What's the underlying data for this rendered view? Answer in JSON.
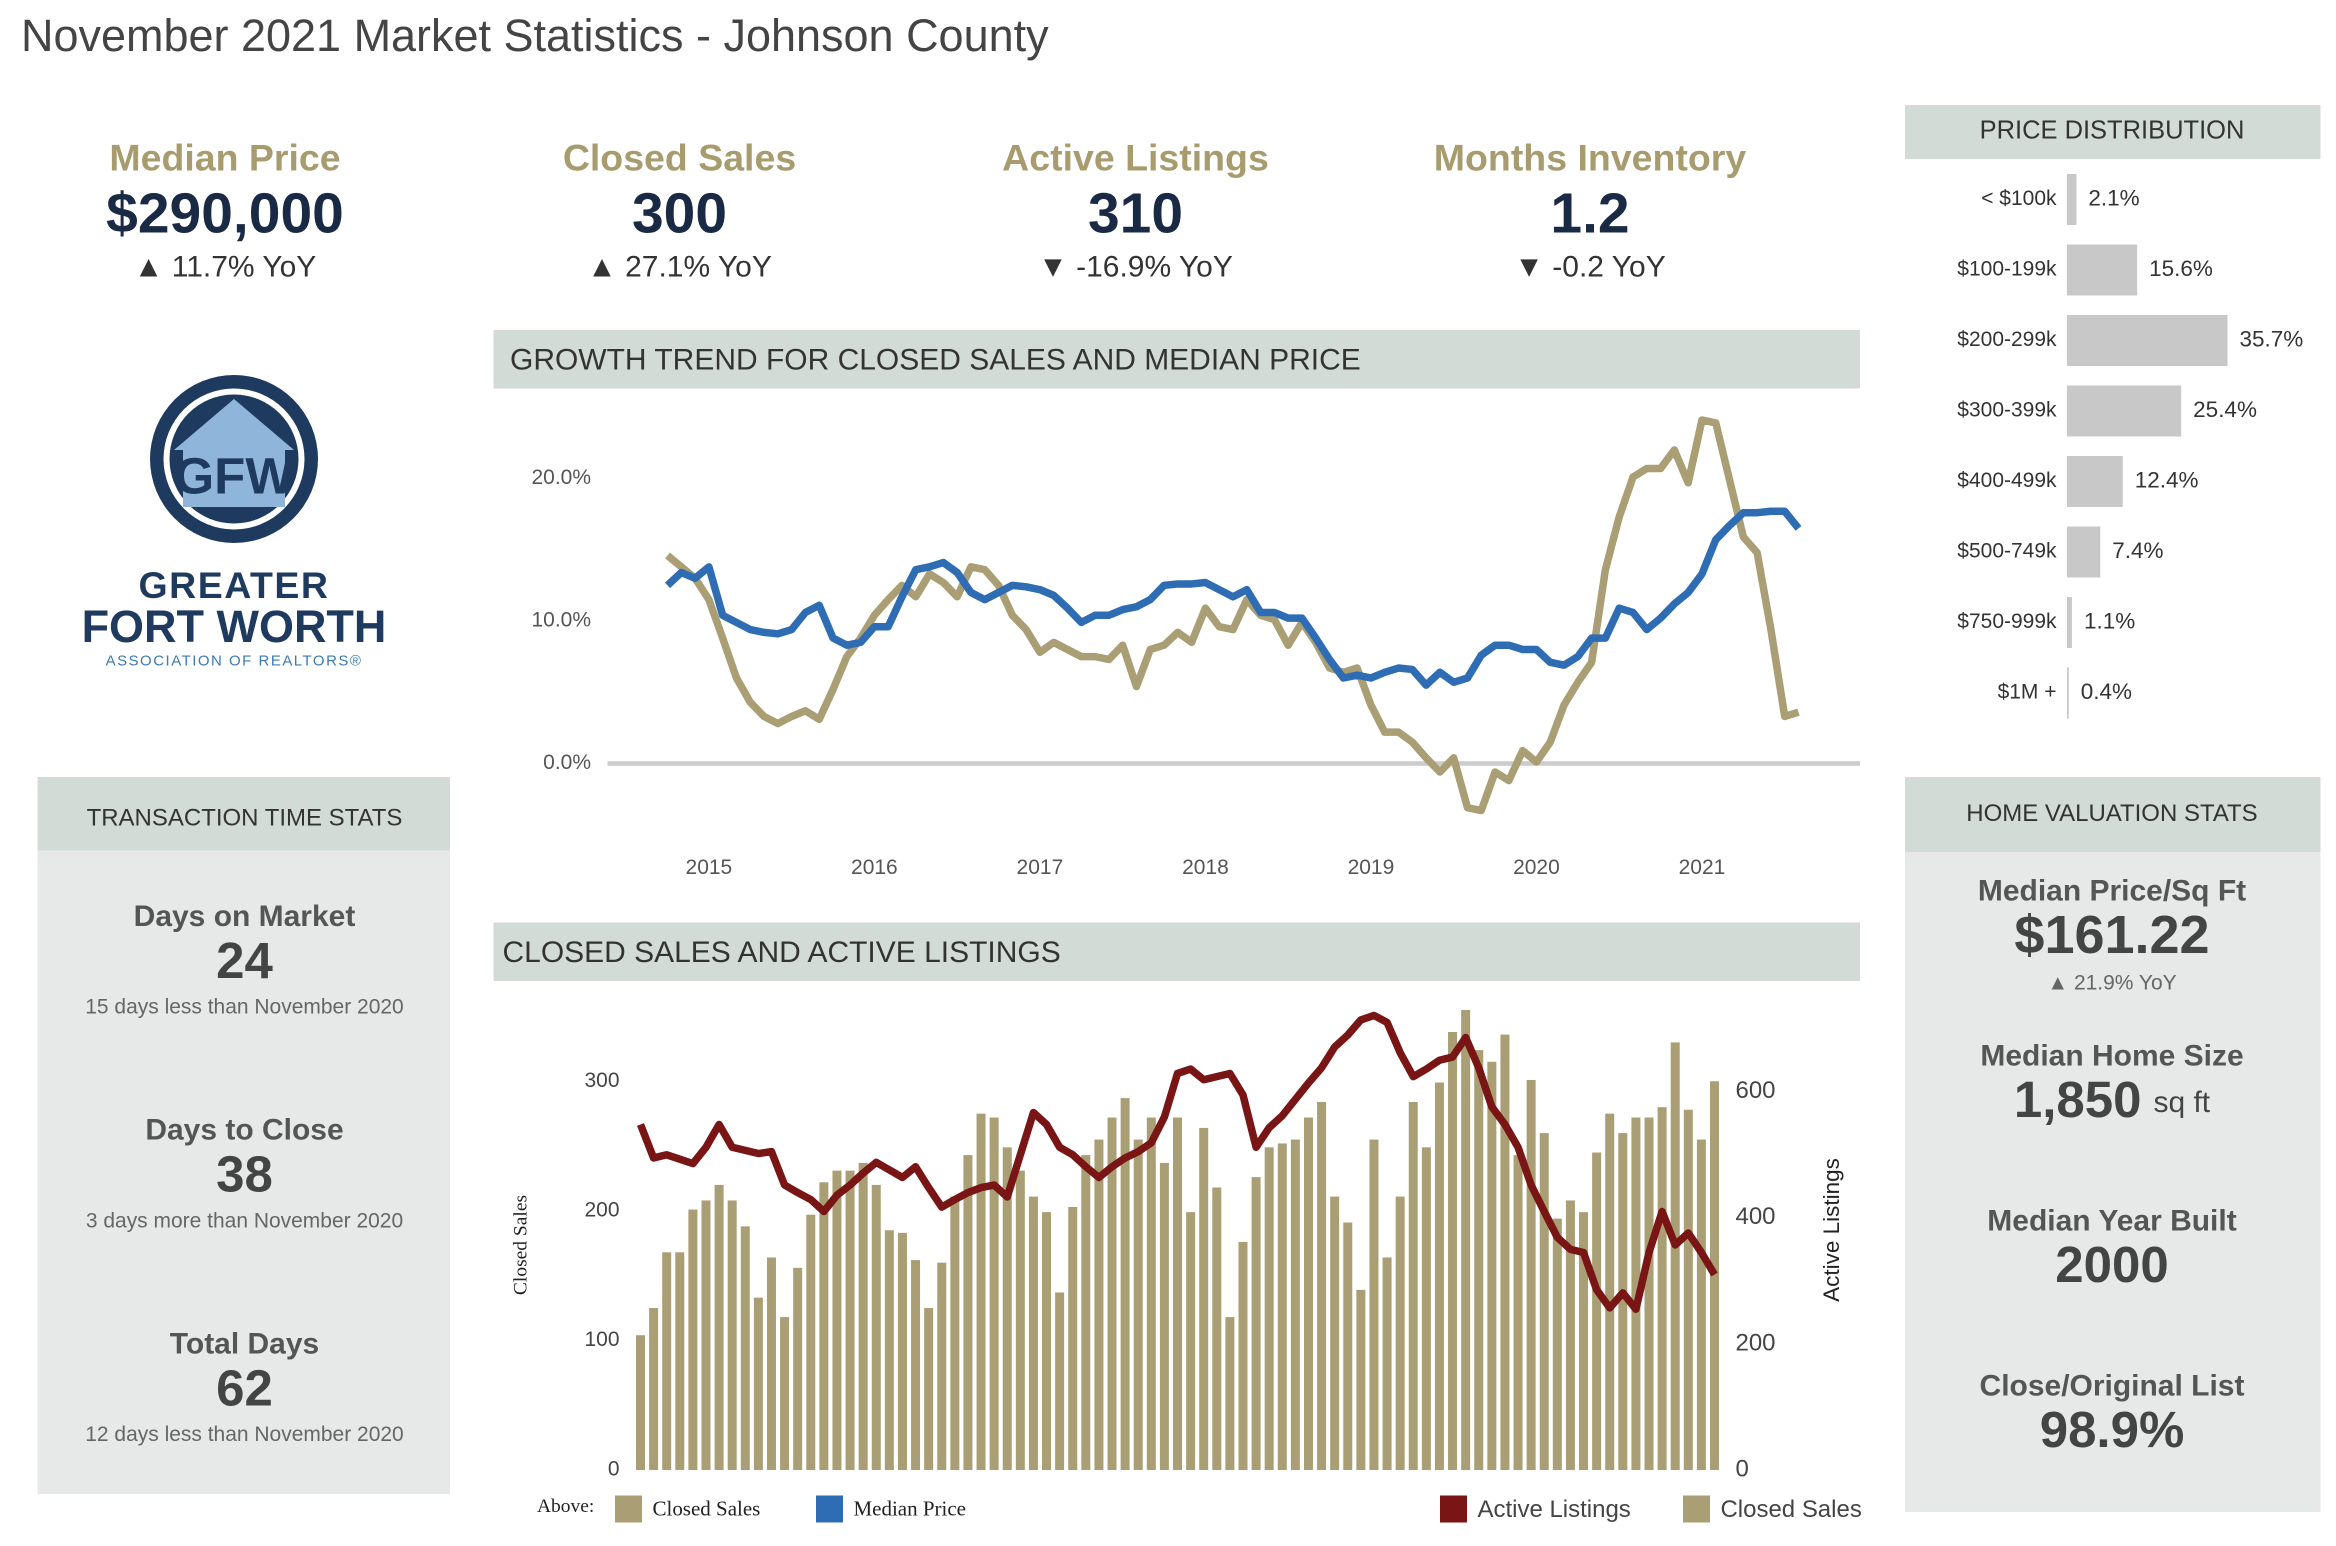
{
  "title": "November 2021 Market Statistics - Johnson County",
  "kpis": [
    {
      "label": "Median Price",
      "value": "$290,000",
      "change": "▲ 11.7% YoY"
    },
    {
      "label": "Closed Sales",
      "value": "300",
      "change": "▲ 27.1% YoY"
    },
    {
      "label": "Active Listings",
      "value": "310",
      "change": "▼ -16.9% YoY"
    },
    {
      "label": "Months Inventory",
      "value": "1.2",
      "change": "▼ -0.2 YoY"
    }
  ],
  "logo": {
    "mark": "GFW",
    "line1": "GREATER",
    "line2": "FORT WORTH",
    "line3": "ASSOCIATION OF REALTORS®"
  },
  "transaction": {
    "title": "TRANSACTION TIME STATS",
    "items": [
      {
        "label": "Days on Market",
        "value": "24",
        "note": "15 days less than November 2020"
      },
      {
        "label": "Days to Close",
        "value": "38",
        "note": "3 days more than November 2020"
      },
      {
        "label": "Total Days",
        "value": "62",
        "note": "12 days less than November 2020"
      }
    ]
  },
  "valuation": {
    "title": "HOME VALUATION STATS",
    "items": [
      {
        "label": "Median Price/Sq Ft",
        "value": "$161.22",
        "note": "▲ 21.9% YoY"
      },
      {
        "label": "Median Home Size",
        "value": "1,850",
        "unit": "sq ft"
      },
      {
        "label": "Median Year Built",
        "value": "2000"
      },
      {
        "label": "Close/Original List",
        "value": "98.9%"
      }
    ]
  },
  "chart_data": [
    {
      "type": "bar",
      "orientation": "horizontal",
      "title": "PRICE DISTRIBUTION",
      "color": "#c8c8c8",
      "categories": [
        "< $100k",
        "$100-199k",
        "$200-299k",
        "$300-399k",
        "$400-499k",
        "$500-749k",
        "$750-999k",
        "$1M +"
      ],
      "values": [
        2.1,
        15.6,
        35.7,
        25.4,
        12.4,
        7.4,
        1.1,
        0.4
      ],
      "value_labels": [
        "2.1%",
        "15.6%",
        "35.7%",
        "25.4%",
        "12.4%",
        "7.4%",
        "1.1%",
        "0.4%"
      ]
    },
    {
      "type": "line",
      "title": "GROWTH TREND FOR CLOSED SALES AND MEDIAN PRICE",
      "legend_title": "Above:",
      "grid": false,
      "categories": [
        null,
        null,
        null,
        "2015",
        null,
        null,
        null,
        null,
        null,
        null,
        null,
        null,
        null,
        null,
        null,
        "2016",
        null,
        null,
        null,
        null,
        null,
        null,
        null,
        null,
        null,
        null,
        null,
        "2017",
        null,
        null,
        null,
        null,
        null,
        null,
        null,
        null,
        null,
        null,
        null,
        "2018",
        null,
        null,
        null,
        null,
        null,
        null,
        null,
        null,
        null,
        null,
        null,
        "2019",
        null,
        null,
        null,
        null,
        null,
        null,
        null,
        null,
        null,
        null,
        null,
        "2020",
        null,
        null,
        null,
        null,
        null,
        null,
        null,
        null,
        null,
        null,
        null,
        "2021",
        null,
        null,
        null,
        null,
        null,
        null,
        null
      ],
      "ylim": [
        -4,
        25
      ],
      "yticks": [
        {
          "value": 0,
          "label": "0.0%"
        },
        {
          "value": 10,
          "label": "10.0%"
        },
        {
          "value": 20,
          "label": "20.0%"
        }
      ],
      "series": [
        {
          "name": "Closed Sales",
          "color": "#aa9e74",
          "values": [
            14.6,
            13.8,
            13.0,
            11.5,
            8.8,
            6.0,
            4.3,
            3.3,
            2.8,
            3.3,
            3.7,
            3.1,
            5.2,
            7.5,
            8.8,
            10.4,
            11.5,
            12.5,
            11.7,
            13.3,
            12.7,
            11.7,
            13.8,
            13.6,
            12.5,
            10.4,
            9.4,
            7.8,
            8.5,
            8.0,
            7.5,
            7.5,
            7.3,
            8.3,
            5.4,
            8.0,
            8.3,
            9.2,
            8.5,
            10.9,
            9.6,
            9.4,
            11.5,
            10.4,
            10.1,
            8.3,
            9.9,
            8.5,
            6.7,
            6.4,
            6.7,
            4.1,
            2.2,
            2.2,
            1.5,
            0.4,
            -0.6,
            0.4,
            -3.1,
            -3.3,
            -0.6,
            -1.2,
            0.9,
            0.1,
            1.5,
            4.1,
            5.7,
            7.1,
            13.6,
            17.3,
            20.1,
            20.7,
            20.7,
            22.0,
            19.7,
            24.1,
            23.9,
            19.9,
            15.9,
            14.8,
            9.4,
            3.3,
            3.6
          ]
        },
        {
          "name": "Median Price",
          "color": "#2e6db4",
          "values": [
            12.5,
            13.4,
            13.0,
            13.8,
            10.4,
            9.9,
            9.4,
            9.2,
            9.1,
            9.4,
            10.6,
            11.1,
            8.8,
            8.3,
            8.5,
            9.6,
            9.6,
            11.7,
            13.6,
            13.8,
            14.1,
            13.4,
            12.0,
            11.5,
            12.0,
            12.5,
            12.4,
            12.2,
            11.8,
            10.9,
            9.9,
            10.4,
            10.4,
            10.8,
            11.0,
            11.5,
            12.5,
            12.6,
            12.6,
            12.7,
            12.2,
            11.7,
            12.2,
            10.6,
            10.6,
            10.2,
            10.2,
            8.8,
            7.3,
            6.0,
            6.2,
            6.0,
            6.4,
            6.7,
            6.6,
            5.5,
            6.4,
            5.7,
            6.0,
            7.6,
            8.3,
            8.3,
            8.0,
            8.0,
            7.1,
            6.9,
            7.5,
            8.8,
            8.8,
            10.9,
            10.6,
            9.4,
            10.2,
            11.2,
            12.0,
            13.3,
            15.7,
            16.7,
            17.6,
            17.6,
            17.7,
            17.7,
            16.5
          ]
        }
      ]
    },
    {
      "type": "bar",
      "title": "CLOSED SALES AND ACTIVE LISTINGS",
      "ylabel": "Closed Sales",
      "y2label": "Active Listings",
      "ylim": [
        0,
        360
      ],
      "yticks": [
        0,
        100,
        200,
        300
      ],
      "y2lim": [
        0,
        740
      ],
      "y2ticks": [
        0,
        200,
        400,
        600
      ],
      "series": [
        {
          "name": "Closed Sales",
          "color": "#aa9e74",
          "values": [
            104,
            125,
            168,
            168,
            201,
            208,
            220,
            208,
            188,
            133,
            164,
            118,
            156,
            197,
            222,
            231,
            231,
            237,
            220,
            185,
            183,
            162,
            125,
            160,
            211,
            243,
            275,
            272,
            249,
            231,
            211,
            199,
            137,
            203,
            243,
            255,
            272,
            287,
            255,
            272,
            237,
            272,
            199,
            264,
            218,
            118,
            176,
            226,
            249,
            252,
            255,
            272,
            284,
            211,
            191,
            139,
            255,
            164,
            211,
            284,
            249,
            299,
            338,
            355,
            324,
            315,
            336,
            243,
            301,
            260,
            194,
            208,
            199,
            245,
            275,
            260,
            272,
            272,
            280,
            330,
            278,
            255,
            300
          ]
        },
        {
          "name": "Active Listings",
          "type": "line",
          "axis": "y2",
          "color": "#7a1515",
          "values": [
            548,
            495,
            500,
            493,
            486,
            512,
            548,
            512,
            507,
            502,
            505,
            452,
            440,
            429,
            410,
            436,
            452,
            471,
            488,
            476,
            464,
            481,
            448,
            417,
            429,
            440,
            448,
            452,
            433,
            500,
            567,
            548,
            512,
            500,
            481,
            464,
            481,
            495,
            505,
            519,
            560,
            629,
            636,
            619,
            624,
            629,
            595,
            512,
            543,
            562,
            588,
            614,
            638,
            671,
            690,
            714,
            721,
            710,
            662,
            624,
            636,
            650,
            655,
            686,
            638,
            576,
            548,
            512,
            452,
            410,
            369,
            350,
            345,
            286,
            257,
            281,
            255,
            345,
            410,
            357,
            376,
            345,
            310
          ]
        }
      ]
    }
  ]
}
